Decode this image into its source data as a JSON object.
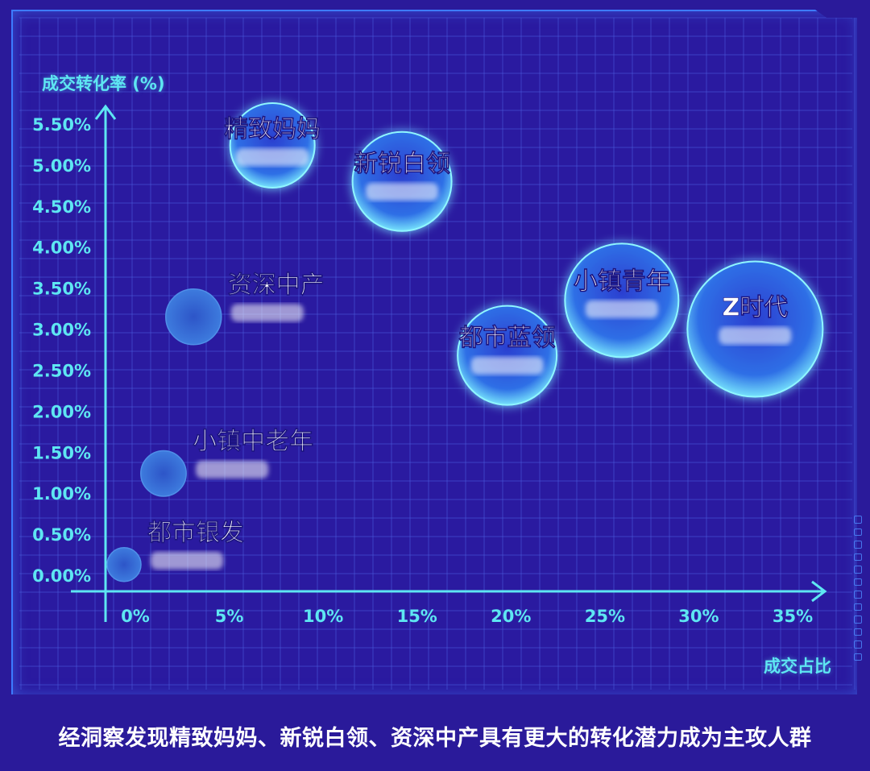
{
  "caption": "经洞察发现精致妈妈、新锐白领、资深中产具有更大的转化潜力成为主攻人群",
  "chart_data": {
    "type": "scatter",
    "xlabel": "成交占比",
    "ylabel": "成交转化率 (%)",
    "xlim": [
      0,
      35
    ],
    "ylim": [
      0,
      5.5
    ],
    "x_ticks": [
      "0%",
      "5%",
      "10%",
      "15%",
      "20%",
      "25%",
      "30%",
      "35%"
    ],
    "y_ticks": [
      "0.00%",
      "0.50%",
      "1.00%",
      "1.50%",
      "2.00%",
      "2.50%",
      "3.00%",
      "3.50%",
      "4.00%",
      "4.50%",
      "5.00%",
      "5.50%"
    ],
    "grid": true,
    "points": [
      {
        "name": "精致妈妈",
        "x": 7.3,
        "y": 5.24,
        "size": 4.5
      },
      {
        "name": "新锐白领",
        "x": 14.2,
        "y": 4.8,
        "size": 5.5
      },
      {
        "name": "资深中产",
        "x": 3.1,
        "y": 3.15,
        "size": 2.5
      },
      {
        "name": "都市蓝领",
        "x": 19.8,
        "y": 2.68,
        "size": 5.5
      },
      {
        "name": "小镇青年",
        "x": 25.9,
        "y": 3.35,
        "size": 6.5
      },
      {
        "name": "Z时代",
        "x": 33.0,
        "y": 3.0,
        "size": 8
      },
      {
        "name": "小镇中老年",
        "x": 1.5,
        "y": 1.24,
        "size": 1.8
      },
      {
        "name": "都市银发",
        "x": -0.6,
        "y": 0.13,
        "size": 1
      }
    ]
  }
}
